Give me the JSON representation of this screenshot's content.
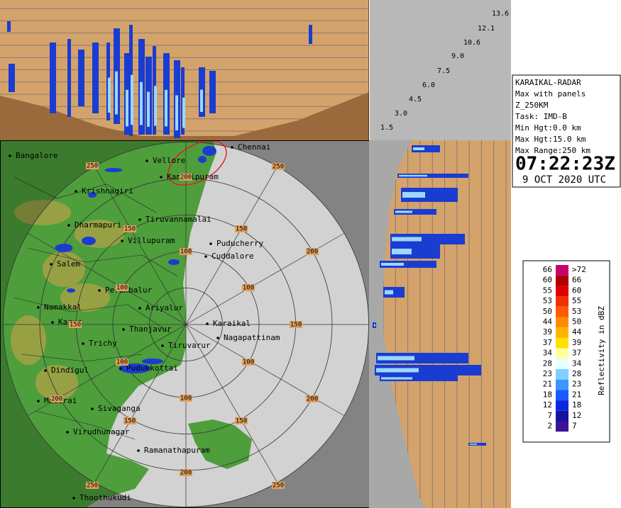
{
  "info": {
    "lines": [
      "KARAIKAL-RADAR",
      "Max with panels",
      "Z_250KM",
      "Task: IMD-B",
      "Min Hgt:0.0 km",
      "Max Hgt:15.0 km",
      "Max Range:250 km"
    ],
    "time": "07:22:23Z",
    "date": "9 OCT 2020 UTC"
  },
  "heights": [
    "1.5",
    "3.0",
    "4.5",
    "6.0",
    "7.5",
    "9.0",
    "10.6",
    "12.1",
    "13.6"
  ],
  "places": [
    "Chennai",
    "Bangalore",
    "Vellore",
    "Kanchipuram",
    "Krishnagiri",
    "Tiruvannamalai",
    "Dharmapuri",
    "Villupuram",
    "Puducherry",
    "Cuddalore",
    "Salem",
    "Perambalur",
    "Namakkal",
    "Ariyalur",
    "Karur",
    "Karaikal",
    "Thanjavur",
    "Nagapattinam",
    "Trichy",
    "Tiruvarur",
    "Dindigul",
    "Pudukkottai",
    "Madurai",
    "Sivaganga",
    "Virudhunagar",
    "Ramanathapuram",
    "Thoothukudi"
  ],
  "range_labels": [
    "250",
    "250",
    "250",
    "250",
    "200",
    "200",
    "200",
    "200",
    "200",
    "150",
    "150",
    "150",
    "150",
    "150",
    "150",
    "100",
    "100",
    "100",
    "100",
    "100",
    "100"
  ],
  "legend": {
    "title": "Reflectivity in dBZ",
    "rows": [
      {
        "left": "66",
        "right": ">72",
        "color": "#c8006e"
      },
      {
        "left": "60",
        "right": "66",
        "color": "#b00000"
      },
      {
        "left": "55",
        "right": "60",
        "color": "#e00000"
      },
      {
        "left": "53",
        "right": "55",
        "color": "#f03000"
      },
      {
        "left": "50",
        "right": "53",
        "color": "#ff5a00"
      },
      {
        "left": "44",
        "right": "50",
        "color": "#ff8c00"
      },
      {
        "left": "39",
        "right": "44",
        "color": "#ffb400"
      },
      {
        "left": "37",
        "right": "39",
        "color": "#ffe000"
      },
      {
        "left": "34",
        "right": "37",
        "color": "#ffffa0"
      },
      {
        "left": "28",
        "right": "34",
        "color": "#e8ffff"
      },
      {
        "left": "23",
        "right": "28",
        "color": "#80d0ff"
      },
      {
        "left": "21",
        "right": "23",
        "color": "#3c96ff"
      },
      {
        "left": "18",
        "right": "21",
        "color": "#1a5aff"
      },
      {
        "left": "12",
        "right": "18",
        "color": "#0a28e0"
      },
      {
        "left": "7",
        "right": "12",
        "color": "#1414a0"
      },
      {
        "left": "2",
        "right": "7",
        "color": "#3c1496"
      }
    ]
  }
}
